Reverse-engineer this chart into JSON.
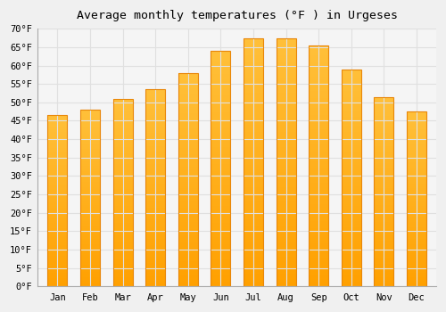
{
  "title": "Average monthly temperatures (°F ) in Urgeses",
  "months": [
    "Jan",
    "Feb",
    "Mar",
    "Apr",
    "May",
    "Jun",
    "Jul",
    "Aug",
    "Sep",
    "Oct",
    "Nov",
    "Dec"
  ],
  "values": [
    46.5,
    48.0,
    51.0,
    53.5,
    58.0,
    64.0,
    67.5,
    67.5,
    65.5,
    59.0,
    51.5,
    47.5
  ],
  "bar_color_main": "#FFA820",
  "bar_color_light": "#FFD060",
  "bar_color_dark": "#FF8C00",
  "ylim": [
    0,
    70
  ],
  "yticks": [
    0,
    5,
    10,
    15,
    20,
    25,
    30,
    35,
    40,
    45,
    50,
    55,
    60,
    65,
    70
  ],
  "ytick_labels": [
    "0°F",
    "5°F",
    "10°F",
    "15°F",
    "20°F",
    "25°F",
    "30°F",
    "35°F",
    "40°F",
    "45°F",
    "50°F",
    "55°F",
    "60°F",
    "65°F",
    "70°F"
  ],
  "background_color": "#f0f0f0",
  "plot_bg_color": "#f5f5f5",
  "grid_color": "#e0e0e0",
  "title_fontsize": 9.5,
  "tick_fontsize": 7.5,
  "font_family": "monospace"
}
